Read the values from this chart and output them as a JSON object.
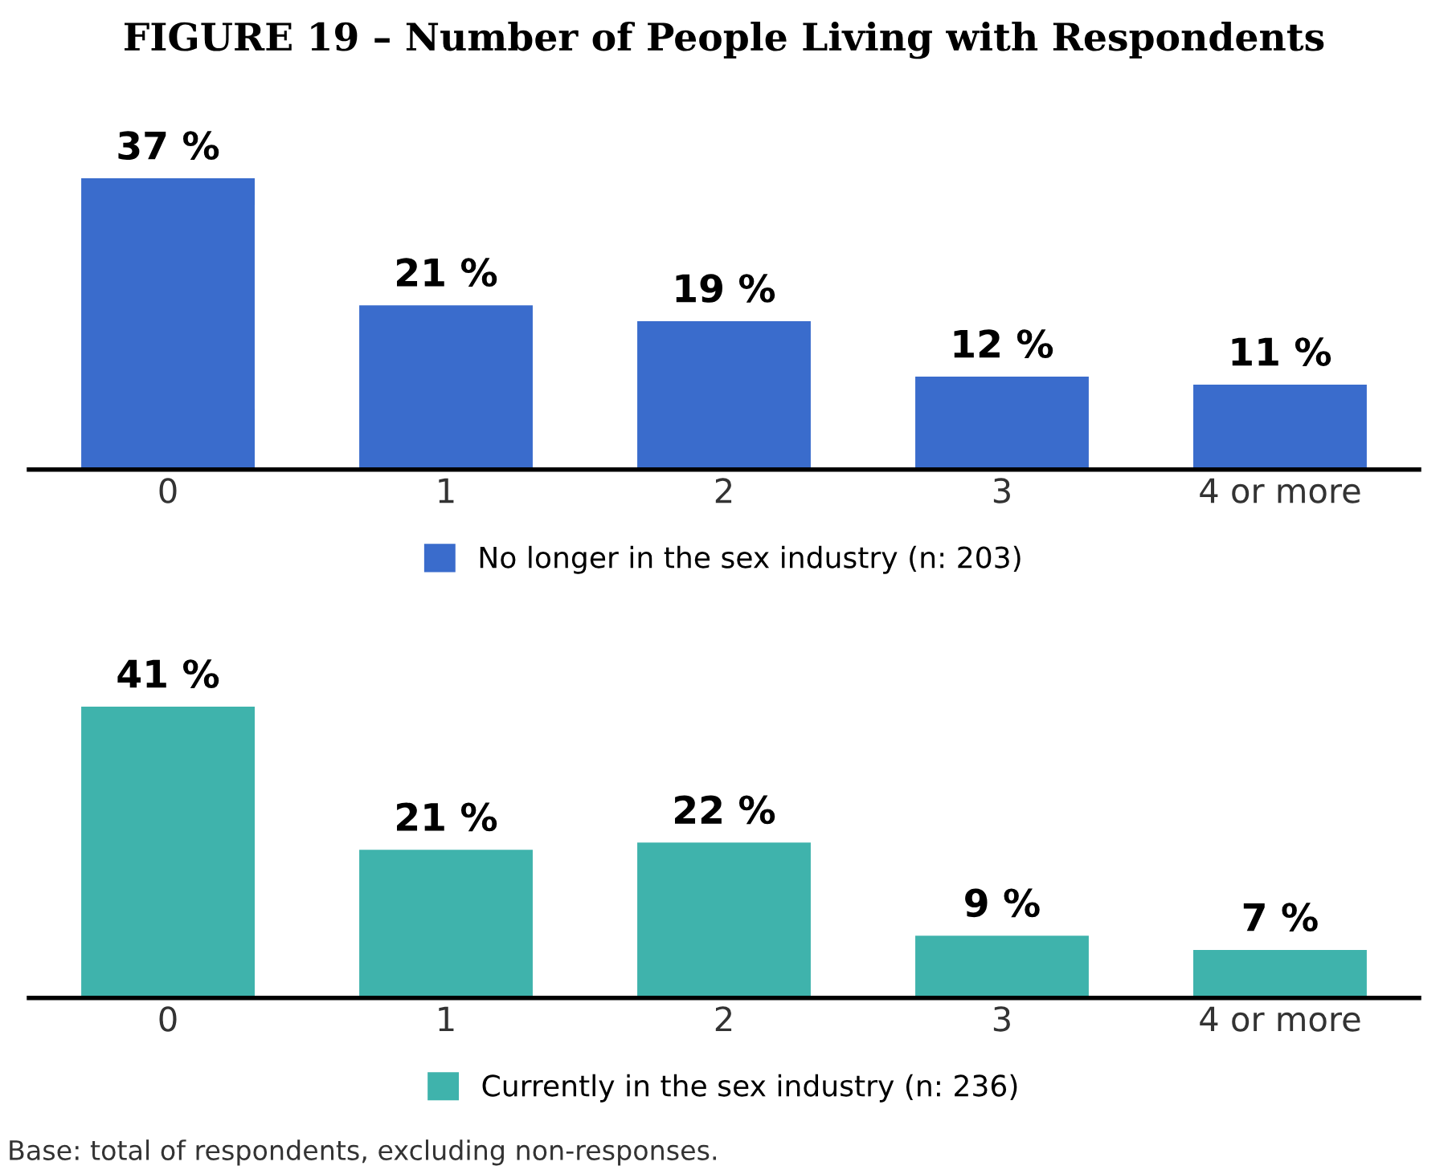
{
  "chart_data": [
    {
      "type": "bar",
      "title": "FIGURE 19 – Number of People Living with Respondents",
      "categories": [
        "0",
        "1",
        "2",
        "3",
        "4 or more"
      ],
      "series": [
        {
          "name": "No longer in the sex industry (n: 203)",
          "color": "#3a6ccc",
          "values": [
            37,
            21,
            19,
            12,
            11
          ],
          "value_labels": [
            "37 %",
            "21 %",
            "19 %",
            "12 %",
            "11 %"
          ]
        }
      ],
      "legend": "bottom",
      "grid": false
    },
    {
      "type": "bar",
      "categories": [
        "0",
        "1",
        "2",
        "3",
        "4 or more"
      ],
      "series": [
        {
          "name": "Currently in the sex industry (n: 236)",
          "color": "#3fb3ac",
          "values": [
            41,
            21,
            22,
            9,
            7
          ],
          "value_labels": [
            "41 %",
            "21 %",
            "22 %",
            "9 %",
            "7 %"
          ]
        }
      ],
      "legend": "bottom",
      "grid": false,
      "annotations": [
        "Base: total of respondents, excluding non-responses."
      ]
    }
  ]
}
